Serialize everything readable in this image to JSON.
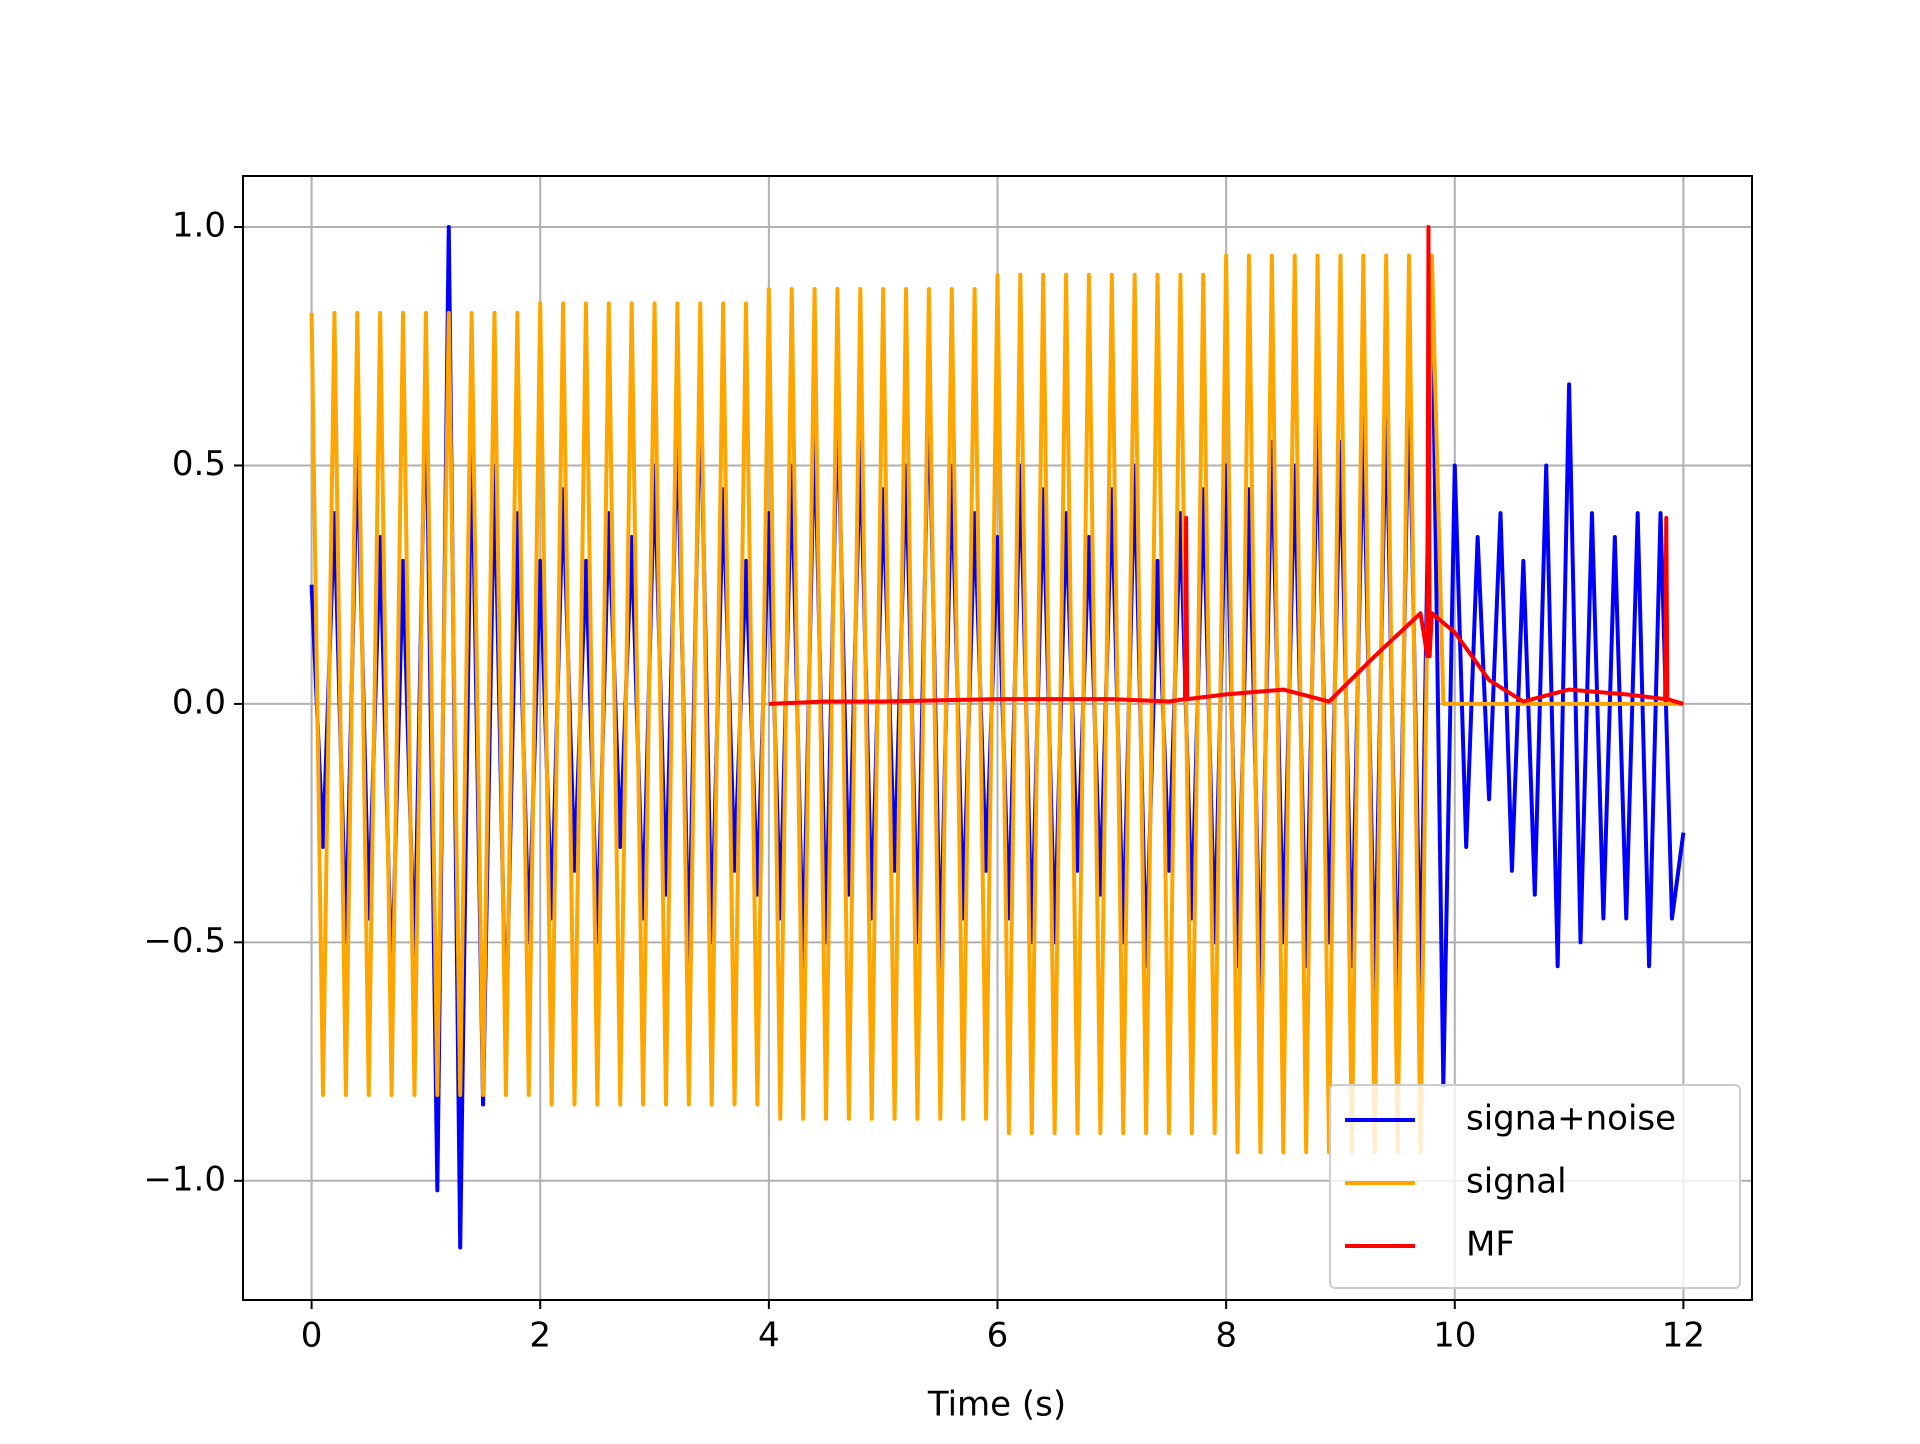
{
  "chart_data": {
    "type": "line",
    "xlabel": "Time (s)",
    "xlim": [
      -0.6,
      12.6
    ],
    "ylim": [
      -1.25,
      1.107
    ],
    "xticks": [
      0,
      2,
      4,
      6,
      8,
      10,
      12
    ],
    "yticks": [
      {
        "value": -1.0,
        "label": "−1.0"
      },
      {
        "value": -0.5,
        "label": "−0.5"
      },
      {
        "value": 0.0,
        "label": "0.0"
      },
      {
        "value": 0.5,
        "label": "0.5"
      },
      {
        "value": 1.0,
        "label": "1.0"
      }
    ],
    "grid": true,
    "legend": "lower right",
    "series": [
      {
        "name": "signa+noise",
        "color": "#0000ff",
        "x": [
          0,
          0.1,
          0.2,
          0.3,
          0.4,
          0.5,
          0.6,
          0.7,
          0.8,
          0.9,
          1.0,
          1.1,
          1.2,
          1.3,
          1.4,
          1.5,
          1.6,
          1.7,
          1.8,
          1.9,
          2.0,
          2.1,
          2.2,
          2.3,
          2.4,
          2.5,
          2.6,
          2.7,
          2.8,
          2.9,
          3.0,
          3.1,
          3.2,
          3.3,
          3.4,
          3.5,
          3.6,
          3.7,
          3.8,
          3.9,
          4.0,
          4.1,
          4.2,
          4.3,
          4.4,
          4.5,
          4.6,
          4.7,
          4.8,
          4.9,
          5.0,
          5.1,
          5.2,
          5.3,
          5.4,
          5.5,
          5.6,
          5.7,
          5.8,
          5.9,
          6.0,
          6.1,
          6.2,
          6.3,
          6.4,
          6.5,
          6.6,
          6.7,
          6.8,
          6.9,
          7.0,
          7.1,
          7.2,
          7.3,
          7.4,
          7.5,
          7.6,
          7.7,
          7.8,
          7.9,
          8.0,
          8.1,
          8.2,
          8.3,
          8.4,
          8.5,
          8.6,
          8.7,
          8.8,
          8.9,
          9.0,
          9.1,
          9.2,
          9.3,
          9.4,
          9.5,
          9.6,
          9.7,
          9.8,
          9.9,
          10.0,
          10.1,
          10.2,
          10.3,
          10.4,
          10.5,
          10.6,
          10.7,
          10.8,
          10.9,
          11.0,
          11.1,
          11.2,
          11.3,
          11.4,
          11.5,
          11.6,
          11.7,
          11.8,
          11.9,
          12.0
        ],
        "values": [
          0.25,
          -0.3,
          0.4,
          -0.5,
          0.55,
          -0.45,
          0.35,
          -0.6,
          0.3,
          -0.55,
          0.7,
          -1.02,
          1.0,
          -1.14,
          0.6,
          -0.84,
          0.5,
          -0.7,
          0.4,
          -0.5,
          0.3,
          -0.45,
          0.45,
          -0.35,
          0.3,
          -0.5,
          0.4,
          -0.3,
          0.35,
          -0.45,
          0.5,
          -0.4,
          0.6,
          -0.55,
          0.68,
          -0.5,
          0.45,
          -0.35,
          0.3,
          -0.4,
          0.4,
          -0.45,
          0.5,
          -0.55,
          0.6,
          -0.5,
          0.65,
          -0.4,
          0.55,
          -0.45,
          0.45,
          -0.35,
          0.5,
          -0.5,
          0.68,
          -0.55,
          0.5,
          -0.45,
          0.4,
          -0.35,
          0.35,
          -0.45,
          0.5,
          -0.5,
          0.45,
          -0.5,
          0.4,
          -0.35,
          0.35,
          -0.4,
          0.45,
          -0.5,
          0.5,
          -0.55,
          0.3,
          -0.35,
          0.4,
          -0.45,
          0.45,
          -0.5,
          0.5,
          -0.55,
          0.45,
          -0.6,
          0.55,
          -0.5,
          0.5,
          -0.55,
          0.6,
          -0.5,
          0.55,
          -0.55,
          0.6,
          -0.6,
          0.65,
          -0.65,
          0.7,
          -0.6,
          0.9,
          -0.8,
          0.5,
          -0.3,
          0.35,
          -0.2,
          0.4,
          -0.35,
          0.3,
          -0.4,
          0.5,
          -0.55,
          0.67,
          -0.5,
          0.4,
          -0.45,
          0.35,
          -0.45,
          0.4,
          -0.55,
          0.4,
          -0.45,
          -0.27
        ]
      },
      {
        "name": "signal",
        "color": "#ffa500",
        "x": [
          0,
          0.1,
          0.2,
          0.3,
          0.4,
          0.5,
          0.6,
          0.7,
          0.8,
          0.9,
          1.0,
          1.1,
          1.2,
          1.3,
          1.4,
          1.5,
          1.6,
          1.7,
          1.8,
          1.9,
          2.0,
          2.1,
          2.2,
          2.3,
          2.4,
          2.5,
          2.6,
          2.7,
          2.8,
          2.9,
          3.0,
          3.1,
          3.2,
          3.3,
          3.4,
          3.5,
          3.6,
          3.7,
          3.8,
          3.9,
          4.0,
          4.1,
          4.2,
          4.3,
          4.4,
          4.5,
          4.6,
          4.7,
          4.8,
          4.9,
          5.0,
          5.1,
          5.2,
          5.3,
          5.4,
          5.5,
          5.6,
          5.7,
          5.8,
          5.9,
          6.0,
          6.1,
          6.2,
          6.3,
          6.4,
          6.5,
          6.6,
          6.7,
          6.8,
          6.9,
          7.0,
          7.1,
          7.2,
          7.3,
          7.4,
          7.5,
          7.6,
          7.7,
          7.8,
          7.9,
          8.0,
          8.1,
          8.2,
          8.3,
          8.4,
          8.5,
          8.6,
          8.7,
          8.8,
          8.9,
          9.0,
          9.1,
          9.2,
          9.3,
          9.4,
          9.5,
          9.6,
          9.7,
          9.8,
          9.9,
          12.0
        ],
        "values": [
          0.82,
          -0.82,
          0.82,
          -0.82,
          0.82,
          -0.82,
          0.82,
          -0.82,
          0.82,
          -0.82,
          0.82,
          -0.82,
          0.82,
          -0.82,
          0.82,
          -0.82,
          0.82,
          -0.82,
          0.82,
          -0.82,
          0.84,
          -0.84,
          0.84,
          -0.84,
          0.84,
          -0.84,
          0.84,
          -0.84,
          0.84,
          -0.84,
          0.84,
          -0.84,
          0.84,
          -0.84,
          0.84,
          -0.84,
          0.84,
          -0.84,
          0.84,
          -0.84,
          0.87,
          -0.87,
          0.87,
          -0.87,
          0.87,
          -0.87,
          0.87,
          -0.87,
          0.87,
          -0.87,
          0.87,
          -0.87,
          0.87,
          -0.87,
          0.87,
          -0.87,
          0.87,
          -0.87,
          0.87,
          -0.87,
          0.9,
          -0.9,
          0.9,
          -0.9,
          0.9,
          -0.9,
          0.9,
          -0.9,
          0.9,
          -0.9,
          0.9,
          -0.9,
          0.9,
          -0.9,
          0.9,
          -0.9,
          0.9,
          -0.9,
          0.9,
          -0.9,
          0.94,
          -0.94,
          0.94,
          -0.94,
          0.94,
          -0.94,
          0.94,
          -0.94,
          0.94,
          -0.94,
          0.94,
          -0.94,
          0.94,
          -0.94,
          0.94,
          -0.94,
          0.94,
          -0.94,
          0.94,
          0,
          0
        ]
      },
      {
        "name": "MF",
        "color": "#ff0000",
        "x": [
          4,
          4.5,
          5,
          6,
          7,
          7.5,
          7.64,
          7.65,
          7.66,
          8,
          8.5,
          8.9,
          9.3,
          9.7,
          9.76,
          9.77,
          9.78,
          9.8,
          10.0,
          10.3,
          10.6,
          11,
          11.5,
          11.84,
          11.85,
          11.86,
          12
        ],
        "values": [
          0,
          0.005,
          0.005,
          0.01,
          0.01,
          0.005,
          0.01,
          0.39,
          0.01,
          0.02,
          0.03,
          0.005,
          0.1,
          0.19,
          0.1,
          1.0,
          0.1,
          0.19,
          0.15,
          0.05,
          0.005,
          0.03,
          0.02,
          0.01,
          0.39,
          0.01,
          0
        ]
      }
    ]
  }
}
